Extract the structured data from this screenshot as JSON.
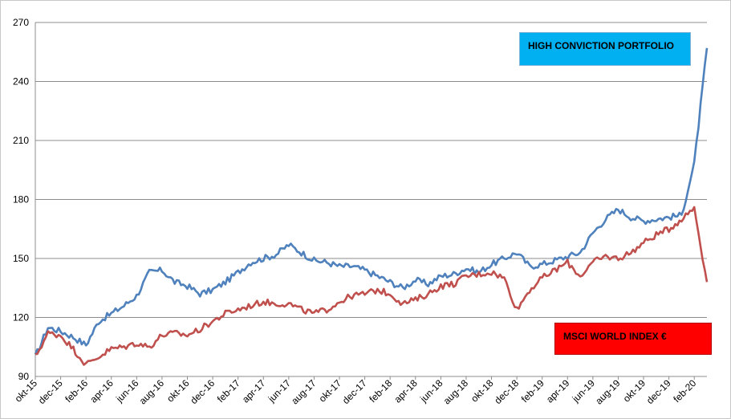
{
  "chart_data": {
    "type": "line",
    "title": "",
    "xlabel": "",
    "ylabel": "",
    "ylim": [
      90,
      270
    ],
    "yticks": [
      90,
      120,
      150,
      180,
      210,
      240,
      270
    ],
    "ytick_labels": [
      "90",
      "120",
      "150",
      "180",
      "210",
      "240",
      "270"
    ],
    "xtick_labels": [
      "okt-15",
      "dec-15",
      "feb-16",
      "apr-16",
      "jun-16",
      "aug-16",
      "okt-16",
      "dec-16",
      "feb-17",
      "apr-17",
      "jun-17",
      "aug-17",
      "okt-17",
      "dec-17",
      "feb-18",
      "apr-18",
      "jun-18",
      "aug-18",
      "okt-18",
      "dec-18",
      "feb-19",
      "apr-19",
      "jun-19",
      "aug-19",
      "okt-19",
      "dec-19",
      "feb-20"
    ],
    "grid": true,
    "legend": "annotations inside plot (top-right and bottom-right)",
    "series": [
      {
        "name": "HIGH CONVICTION PORTFOLIO",
        "color": "#4f81bd",
        "label_bg": "#00b0f0",
        "x": [
          "okt-15",
          "nov-15",
          "dec-15",
          "jan-16",
          "feb-16",
          "mar-16",
          "apr-16",
          "mei-16",
          "jun-16",
          "jul-16",
          "aug-16",
          "sep-16",
          "okt-16",
          "nov-16",
          "dec-16",
          "jan-17",
          "feb-17",
          "mrt-17",
          "apr-17",
          "mei-17",
          "jun-17",
          "jul-17",
          "aug-17",
          "sep-17",
          "okt-17",
          "nov-17",
          "dec-17",
          "jan-18",
          "feb-18",
          "mrt-18",
          "apr-18",
          "mei-18",
          "jun-18",
          "jul-18",
          "aug-18",
          "sep-18",
          "okt-18",
          "nov-18",
          "dec-18",
          "jan-19",
          "feb-19",
          "mrt-19",
          "apr-19",
          "mei-19",
          "jun-19",
          "jul-19",
          "aug-19",
          "sep-19",
          "okt-19",
          "nov-19",
          "dec-19",
          "jan-20",
          "feb-20",
          "mrt-20"
        ],
        "values": [
          100,
          115,
          113,
          110,
          106,
          118,
          122,
          126,
          131,
          143,
          144,
          138,
          136,
          132,
          134,
          138,
          143,
          148,
          150,
          152,
          157,
          153,
          149,
          148,
          146,
          146,
          144,
          141,
          138,
          135,
          139,
          137,
          141,
          142,
          145,
          143,
          147,
          150,
          153,
          146,
          147,
          149,
          151,
          153,
          163,
          170,
          175,
          171,
          169,
          170,
          171,
          172,
          198,
          257
        ]
      },
      {
        "name": "MSCI WORLD INDEX €",
        "color": "#c0504d",
        "label_bg": "#ff0000",
        "x": [
          "okt-15",
          "nov-15",
          "dec-15",
          "jan-16",
          "feb-16",
          "mar-16",
          "apr-16",
          "mei-16",
          "jun-16",
          "jul-16",
          "aug-16",
          "sep-16",
          "okt-16",
          "nov-16",
          "dec-16",
          "jan-17",
          "feb-17",
          "mrt-17",
          "apr-17",
          "mei-17",
          "jun-17",
          "jul-17",
          "aug-17",
          "sep-17",
          "okt-17",
          "nov-17",
          "dec-17",
          "jan-18",
          "feb-18",
          "mrt-18",
          "apr-18",
          "mei-18",
          "jun-18",
          "jul-18",
          "aug-18",
          "sep-18",
          "okt-18",
          "nov-18",
          "dec-18",
          "jan-19",
          "feb-19",
          "mrt-19",
          "apr-19",
          "mei-19",
          "jun-19",
          "jul-19",
          "aug-19",
          "sep-19",
          "okt-19",
          "nov-19",
          "dec-19",
          "jan-20",
          "feb-20",
          "mrt-20"
        ],
        "values": [
          100,
          112,
          111,
          104,
          96,
          100,
          104,
          105,
          107,
          105,
          111,
          112,
          111,
          114,
          118,
          122,
          124,
          126,
          128,
          127,
          127,
          124,
          122,
          124,
          128,
          131,
          132,
          134,
          132,
          127,
          129,
          132,
          136,
          137,
          141,
          142,
          143,
          140,
          124,
          134,
          140,
          144,
          148,
          141,
          148,
          151,
          150,
          153,
          158,
          162,
          165,
          170,
          176,
          138
        ]
      }
    ]
  }
}
